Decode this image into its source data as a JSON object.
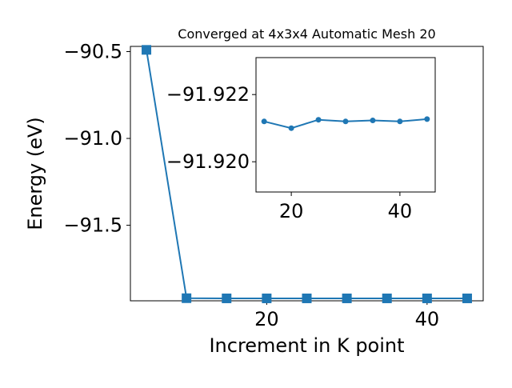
{
  "chart_data": [
    {
      "type": "line",
      "title": "Converged at 4x3x4 Automatic Mesh 20",
      "xlabel": "Increment in K point",
      "ylabel": "Energy (eV)",
      "xlim": [
        3.0,
        47.0
      ],
      "ylim": [
        -91.935,
        -90.47
      ],
      "xticks": [
        20,
        40
      ],
      "xtick_labels": [
        "20",
        "40"
      ],
      "yticks": [
        -90.5,
        -91.0,
        -91.5
      ],
      "ytick_labels": [
        "−90.5",
        "−91.0",
        "−91.5"
      ],
      "grid": false,
      "marker": "square",
      "color": "#1f77b4",
      "series": [
        {
          "x": [
            5,
            10,
            15,
            20,
            25,
            30,
            35,
            40,
            45
          ],
          "y": [
            -90.49,
            -91.92,
            -91.921,
            -91.921,
            -91.921,
            -91.921,
            -91.921,
            -91.921,
            -91.921
          ]
        }
      ]
    },
    {
      "type": "line",
      "inset": true,
      "title": "",
      "xlim": [
        13.5,
        46.5
      ],
      "ylim": [
        -91.9191,
        -91.9231
      ],
      "xticks": [
        20,
        40
      ],
      "xtick_labels": [
        "20",
        "40"
      ],
      "yticks": [
        -91.922,
        -91.92
      ],
      "ytick_labels": [
        "−91.922",
        "−91.920"
      ],
      "grid": false,
      "marker": "circle",
      "color": "#1f77b4",
      "series": [
        {
          "x": [
            15,
            20,
            25,
            30,
            35,
            40,
            45
          ],
          "y": [
            -91.9212,
            -91.921,
            -91.92125,
            -91.9212,
            -91.92123,
            -91.9212,
            -91.92127
          ]
        }
      ]
    }
  ]
}
